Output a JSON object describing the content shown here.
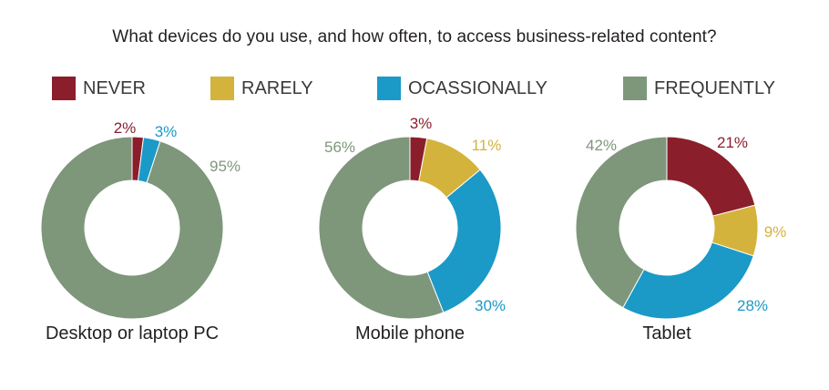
{
  "chart_data": [
    {
      "type": "pie",
      "title": "Desktop or laptop PC",
      "categories": [
        "NEVER",
        "RARELY",
        "OCASSIONALLY",
        "FREQUENTLY"
      ],
      "values": [
        2,
        0,
        3,
        95
      ],
      "labels": [
        "2%",
        "",
        "3%",
        "95%"
      ]
    },
    {
      "type": "pie",
      "title": "Mobile phone",
      "categories": [
        "NEVER",
        "RARELY",
        "OCASSIONALLY",
        "FREQUENTLY"
      ],
      "values": [
        3,
        11,
        30,
        56
      ],
      "labels": [
        "3%",
        "11%",
        "30%",
        "56%"
      ]
    },
    {
      "type": "pie",
      "title": "Tablet",
      "categories": [
        "NEVER",
        "RARELY",
        "OCASSIONALLY",
        "FREQUENTLY"
      ],
      "values": [
        21,
        9,
        28,
        42
      ],
      "labels": [
        "21%",
        "9%",
        "28%",
        "42%"
      ]
    }
  ],
  "header": {
    "title": "What devices do you use, and how often, to access business-related content?"
  },
  "legend": [
    {
      "label": "NEVER",
      "color": "#8a1f2b"
    },
    {
      "label": "RARELY",
      "color": "#d4b33c"
    },
    {
      "label": "OCASSIONALLY",
      "color": "#1b99c7"
    },
    {
      "label": "FREQUENTLY",
      "color": "#7e977b"
    }
  ]
}
